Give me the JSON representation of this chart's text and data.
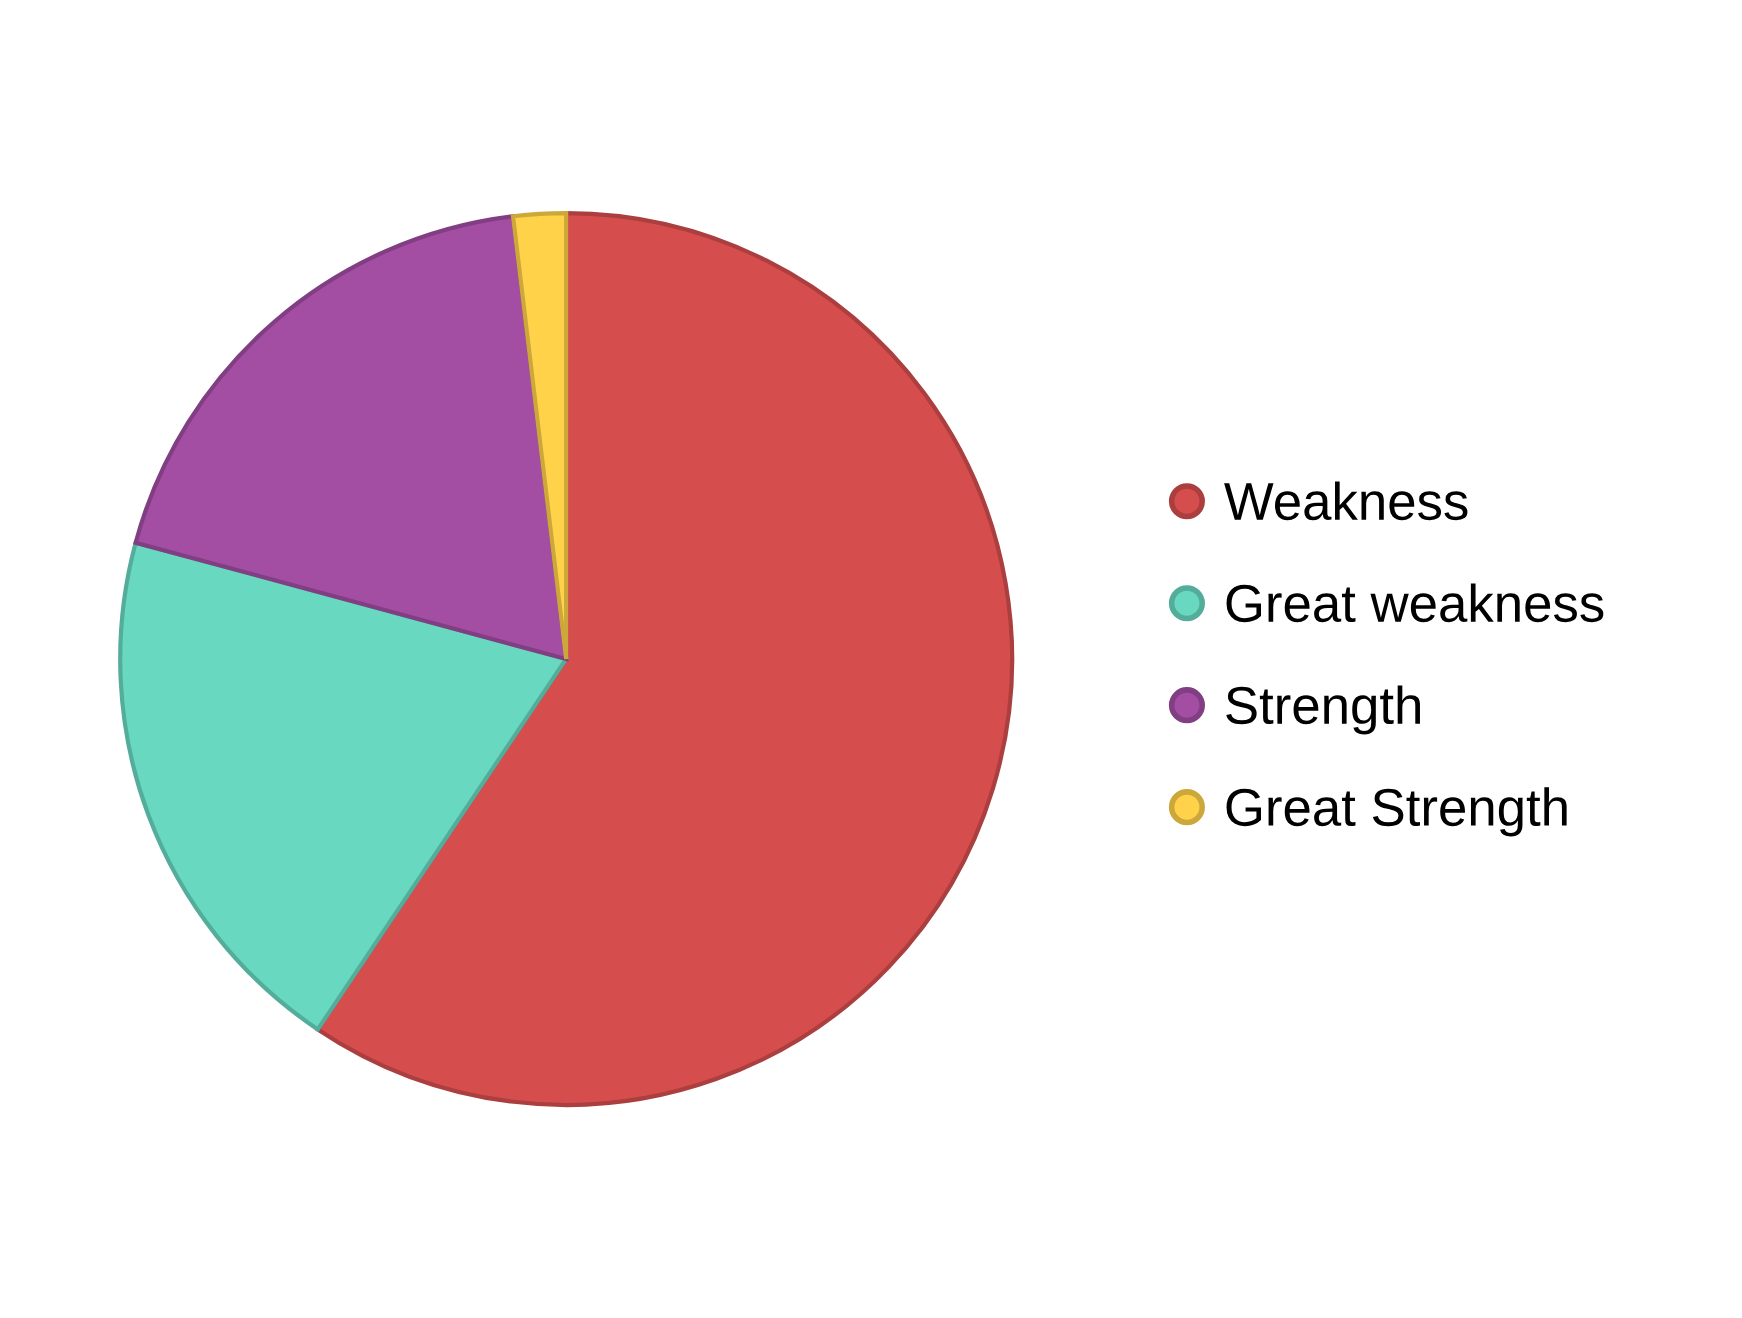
{
  "chart_data": {
    "type": "pie",
    "categories": [
      "Weakness",
      "Great weakness",
      "Strength",
      "Great Strength"
    ],
    "values": [
      59.4,
      19.8,
      18.9,
      1.9
    ],
    "colors": [
      "#d64d4d",
      "#68d8c0",
      "#a34ea3",
      "#ffd24a"
    ],
    "legend": "right"
  }
}
